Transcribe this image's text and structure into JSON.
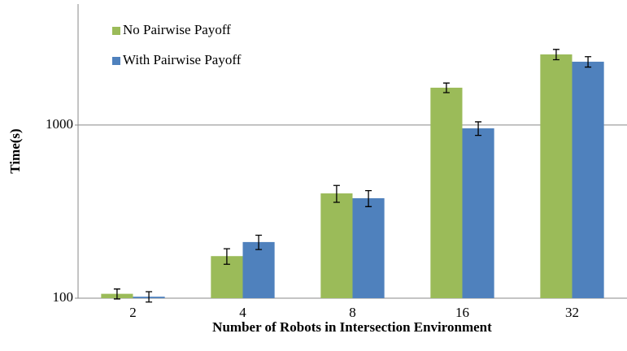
{
  "chart_data": {
    "type": "bar",
    "categories": [
      "2",
      "4",
      "8",
      "16",
      "32"
    ],
    "series": [
      {
        "name": "No Pairwise Payoff",
        "color": "#9bbb59",
        "values": [
          106,
          175,
          403,
          1644,
          2560
        ],
        "errors": [
          7,
          18,
          45,
          105,
          175
        ]
      },
      {
        "name": "With Pairwise Payoff",
        "color": "#4f81bd",
        "values": [
          102,
          211,
          378,
          958,
          2323
        ],
        "errors": [
          7,
          20,
          40,
          86,
          160
        ]
      }
    ],
    "y_label": "Time(s)",
    "x_label": "Number of Robots in Intersection Environment",
    "ylim": [
      100,
      5000
    ],
    "yticks": [
      100,
      1000
    ],
    "log_y": true,
    "grid": true,
    "legend": "upper left"
  }
}
